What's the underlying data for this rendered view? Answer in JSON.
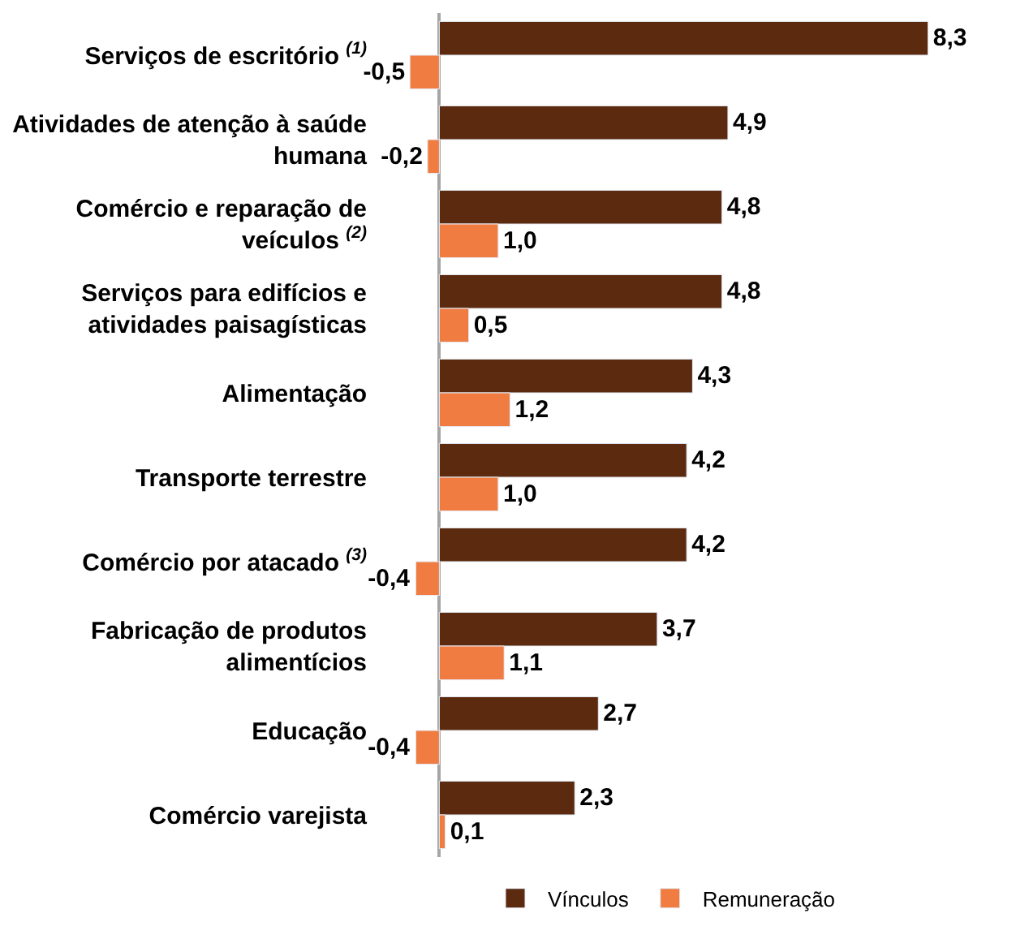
{
  "chart_data": {
    "type": "bar",
    "orientation": "horizontal",
    "legend": "bottom",
    "categories": [
      "Serviços de escritório $^{(1)}$",
      "Atividades de atenção à saúde humana",
      "Comércio e reparação de veículos $^{(2)}$",
      "Serviços para edifícios e atividades paisagísticas",
      "Alimentação",
      "Transporte terrestre",
      "Comércio por atacado $^{(3)}$",
      "Fabricação de produtos alimentícios",
      "Educação",
      "Comércio varejista"
    ],
    "series": [
      {
        "name": "Vínculos",
        "color": "#5c2a0e",
        "values": [
          8.3,
          4.9,
          4.8,
          4.8,
          4.3,
          4.2,
          4.2,
          3.7,
          2.7,
          2.3
        ],
        "value_labels": [
          "8,3",
          "4,9",
          "4,8",
          "4,8",
          "4,3",
          "4,2",
          "4,2",
          "3,7",
          "2,7",
          "2,3"
        ]
      },
      {
        "name": "Remuneração",
        "color": "#f07c42",
        "values": [
          -0.5,
          -0.2,
          1.0,
          0.5,
          1.2,
          1.0,
          -0.4,
          1.1,
          -0.4,
          0.1
        ],
        "value_labels": [
          "-0,5",
          "-0,2",
          "1,0",
          "0,5",
          "1,2",
          "1,0",
          "-0,4",
          "1,1",
          "-0,4",
          "0,1"
        ]
      }
    ]
  }
}
